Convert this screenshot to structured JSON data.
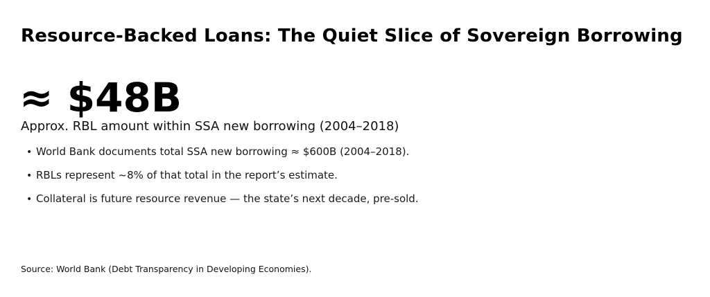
{
  "page": {
    "background_color": "#ffffff",
    "text_color": "#000000"
  },
  "header": {
    "title": "Resource-Backed Loans: The Quiet Slice of Sovereign Borrowing"
  },
  "stat": {
    "value": "≈ $48B",
    "label": "Approx. RBL amount within SSA new borrowing (2004–2018)"
  },
  "bullets": {
    "glyph": "•",
    "items": [
      "World Bank documents total SSA new borrowing ≈ $600B (2004–2018).",
      "RBLs represent ~8% of that total in the report’s estimate.",
      "Collateral is future resource revenue — the state’s next decade, pre-sold."
    ]
  },
  "footer": {
    "source": "Source: World Bank (Debt Transparency in Developing Economies)."
  }
}
